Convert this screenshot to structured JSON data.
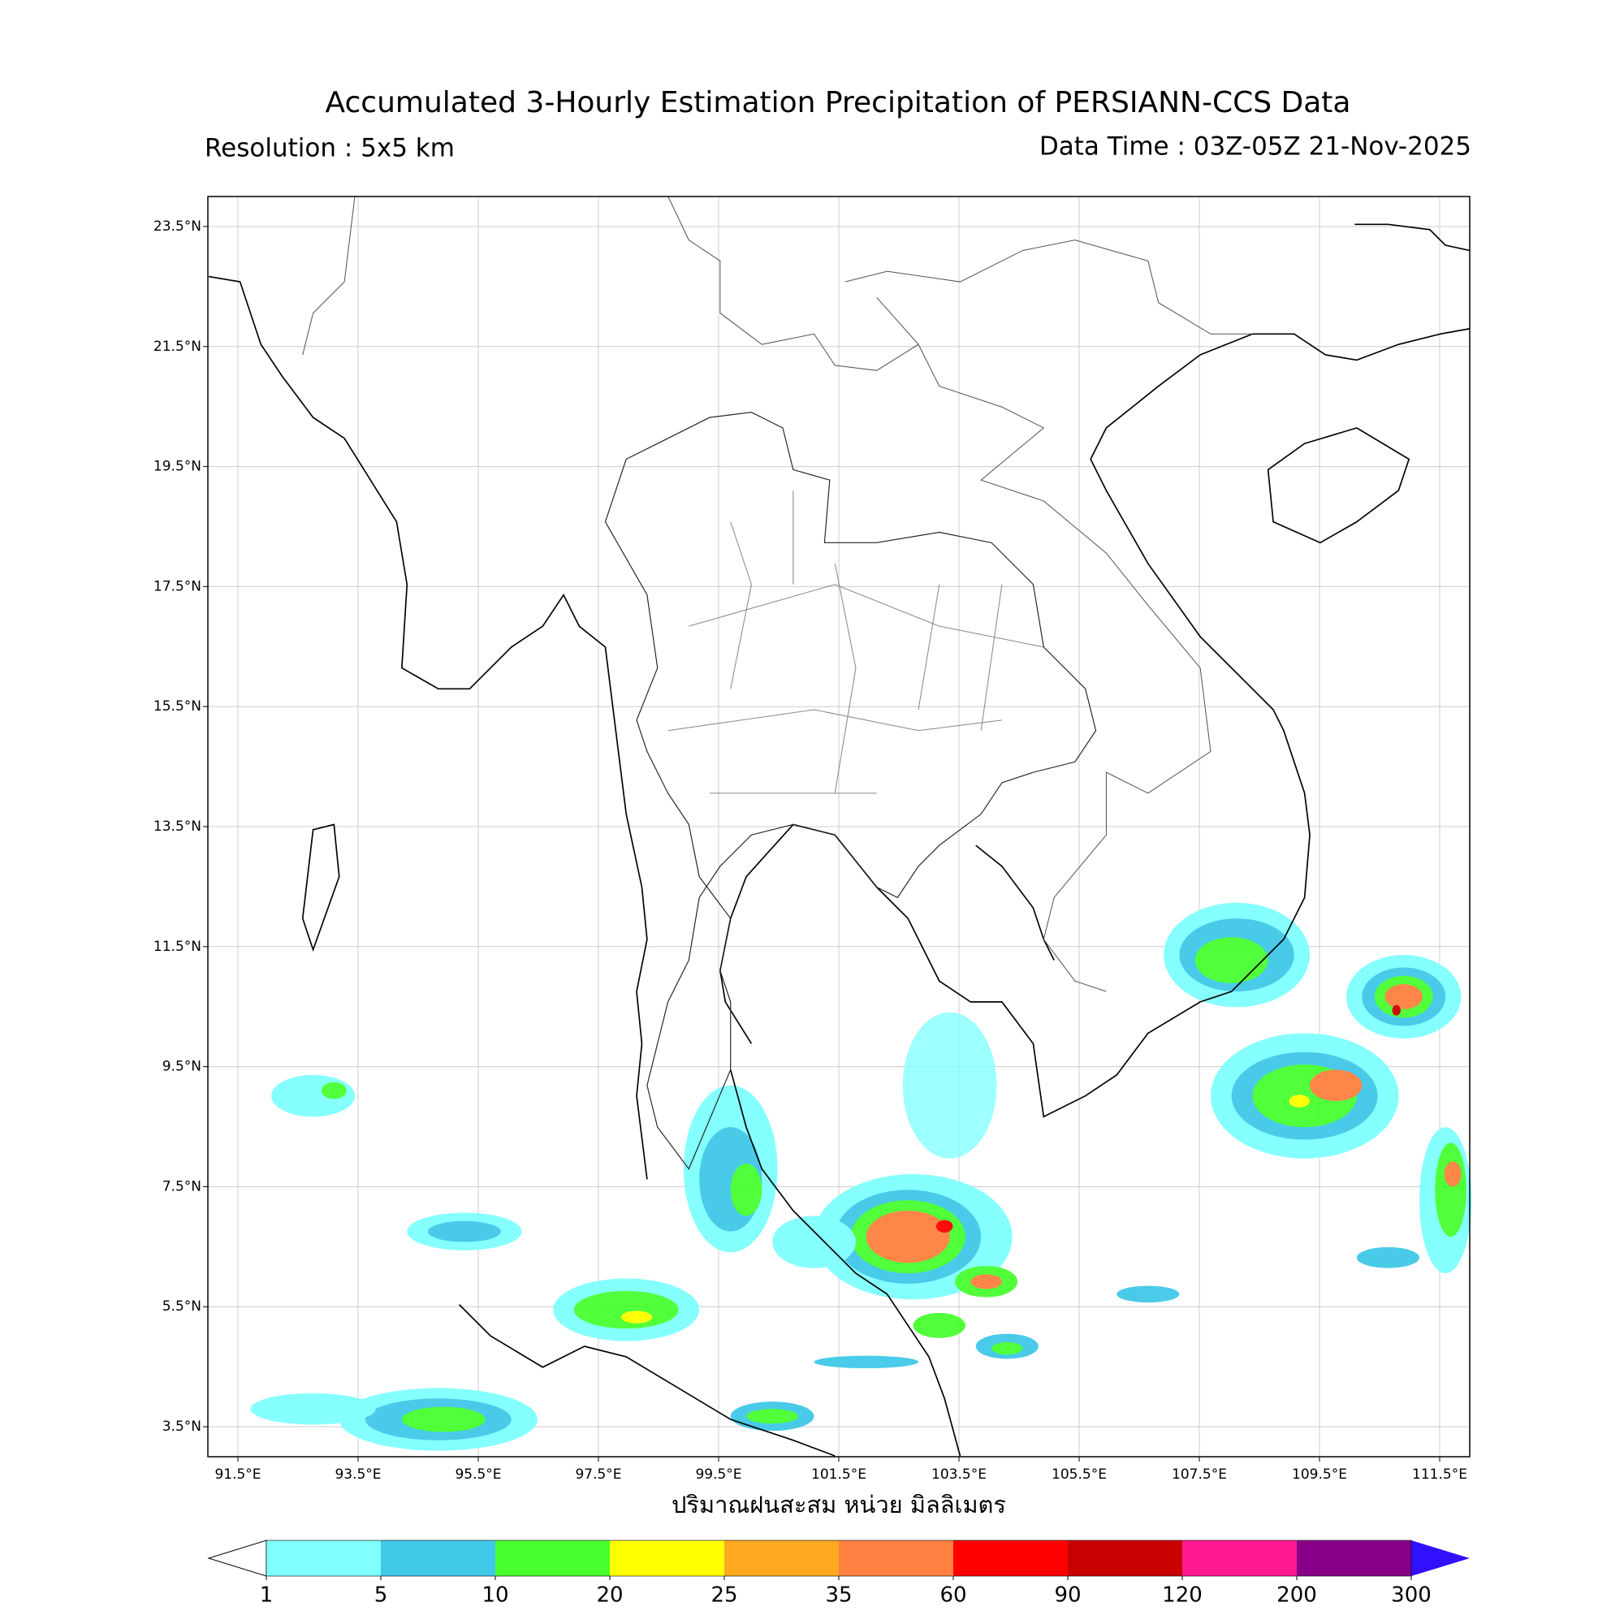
{
  "title": "Accumulated 3-Hourly Estimation Precipitation of PERSIANN-CCS Data",
  "resolution": "Resolution : 5x5 km",
  "data_time": "Data Time : 03Z-05Z 21-Nov-2025",
  "map": {
    "xlim": [
      91,
      112
    ],
    "ylim": [
      3,
      24
    ],
    "xticks": [
      {
        "value": 91.5,
        "label": "91.5°E"
      },
      {
        "value": 93.5,
        "label": "93.5°E"
      },
      {
        "value": 95.5,
        "label": "95.5°E"
      },
      {
        "value": 97.5,
        "label": "97.5°E"
      },
      {
        "value": 99.5,
        "label": "99.5°E"
      },
      {
        "value": 101.5,
        "label": "101.5°E"
      },
      {
        "value": 103.5,
        "label": "103.5°E"
      },
      {
        "value": 105.5,
        "label": "105.5°E"
      },
      {
        "value": 107.5,
        "label": "107.5°E"
      },
      {
        "value": 109.5,
        "label": "109.5°E"
      },
      {
        "value": 111.5,
        "label": "111.5°E"
      }
    ],
    "yticks": [
      {
        "value": 3.5,
        "label": "3.5°N"
      },
      {
        "value": 5.5,
        "label": "5.5°N"
      },
      {
        "value": 7.5,
        "label": "7.5°N"
      },
      {
        "value": 9.5,
        "label": "9.5°N"
      },
      {
        "value": 11.5,
        "label": "11.5°N"
      },
      {
        "value": 13.5,
        "label": "13.5°N"
      },
      {
        "value": 15.5,
        "label": "15.5°N"
      },
      {
        "value": 17.5,
        "label": "17.5°N"
      },
      {
        "value": 19.5,
        "label": "19.5°N"
      },
      {
        "value": 21.5,
        "label": "21.5°N"
      },
      {
        "value": 23.5,
        "label": "23.5°N"
      }
    ],
    "grid": true,
    "xlabel": "ปริมาณฝนสะสม หน่วย มิลลิเมตร"
  },
  "colorbar": {
    "levels": [
      1,
      5,
      10,
      20,
      25,
      35,
      60,
      90,
      120,
      200,
      300
    ],
    "colors": [
      "#80ffff",
      "#40c8e8",
      "#48ff30",
      "#ffff00",
      "#ffa820",
      "#ff8040",
      "#ff0000",
      "#c80000",
      "#ff1890",
      "#880088"
    ],
    "under_color": "#ffffff",
    "over_color": "#3010ff"
  }
}
